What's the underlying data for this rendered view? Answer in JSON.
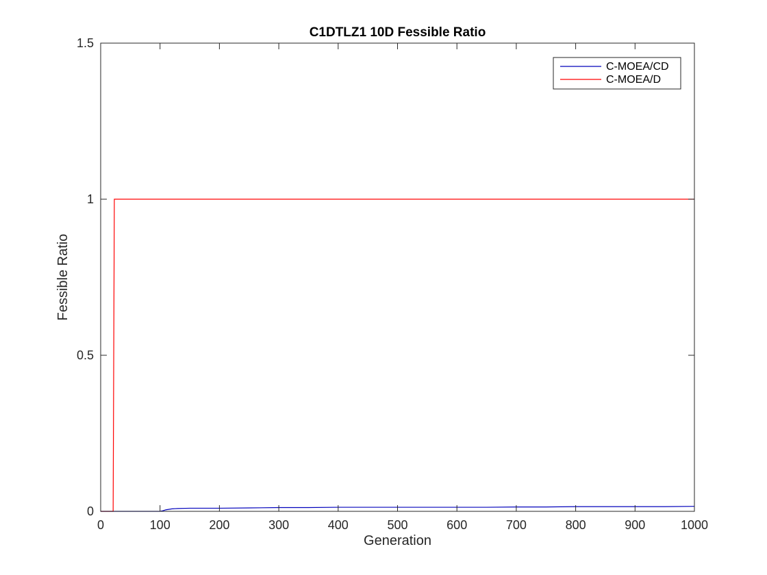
{
  "chart_data": {
    "type": "line",
    "title": "C1DTLZ1 10D Fessible Ratio",
    "xlabel": "Generation",
    "ylabel": "Fessible Ratio",
    "xlim": [
      0,
      1000
    ],
    "ylim": [
      0,
      1.5
    ],
    "xticks": [
      0,
      100,
      200,
      300,
      400,
      500,
      600,
      700,
      800,
      900,
      1000
    ],
    "yticks": [
      0,
      0.5,
      1,
      1.5
    ],
    "xtick_labels": [
      "0",
      "100",
      "200",
      "300",
      "400",
      "500",
      "600",
      "700",
      "800",
      "900",
      "1000"
    ],
    "ytick_labels": [
      "0",
      "0.5",
      "1",
      "1.5"
    ],
    "grid": false,
    "legend_position": "top-right",
    "series": [
      {
        "name": "C-MOEA/CD",
        "color": "#0000bb",
        "x": [
          0,
          100,
          105,
          110,
          120,
          130,
          150,
          200,
          250,
          300,
          350,
          400,
          450,
          500,
          550,
          600,
          650,
          700,
          750,
          800,
          850,
          900,
          950,
          1000
        ],
        "y": [
          0,
          0,
          0.002,
          0.005,
          0.008,
          0.009,
          0.01,
          0.01,
          0.011,
          0.012,
          0.012,
          0.013,
          0.013,
          0.013,
          0.013,
          0.013,
          0.013,
          0.014,
          0.014,
          0.015,
          0.015,
          0.015,
          0.015,
          0.016
        ]
      },
      {
        "name": "C-MOEA/D",
        "color": "#ff0000",
        "x": [
          0,
          21,
          23,
          1000
        ],
        "y": [
          0,
          0,
          1,
          1
        ]
      }
    ]
  }
}
